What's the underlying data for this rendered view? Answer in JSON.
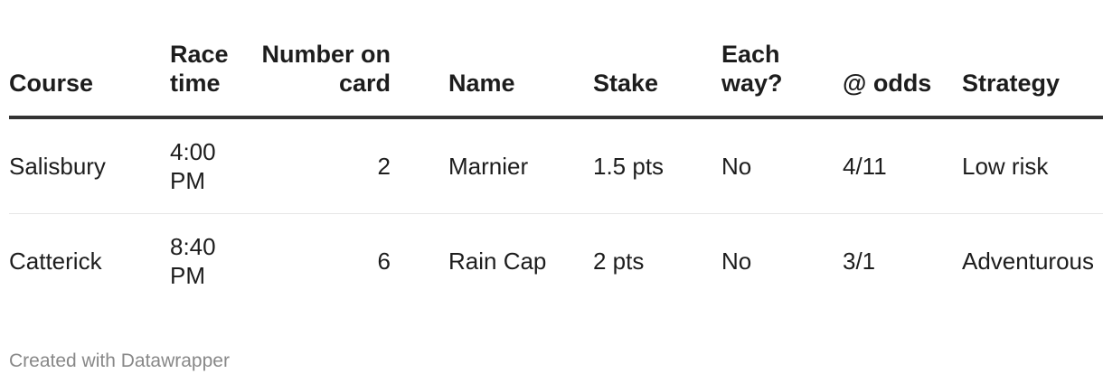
{
  "headers": [
    "Course",
    "Race time",
    "Number on card",
    "Name",
    "Stake",
    "Each way?",
    "@ odds",
    "Strategy"
  ],
  "rows": [
    [
      "Salisbury",
      "4:00 PM",
      "2",
      "Marnier",
      "1.5 pts",
      "No",
      "4/11",
      "Low risk"
    ],
    [
      "Catterick",
      "8:40 PM",
      "6",
      "Rain Cap",
      "2 pts",
      "No",
      "3/1",
      "Adventurous"
    ]
  ],
  "footer": "Created with Datawrapper"
}
